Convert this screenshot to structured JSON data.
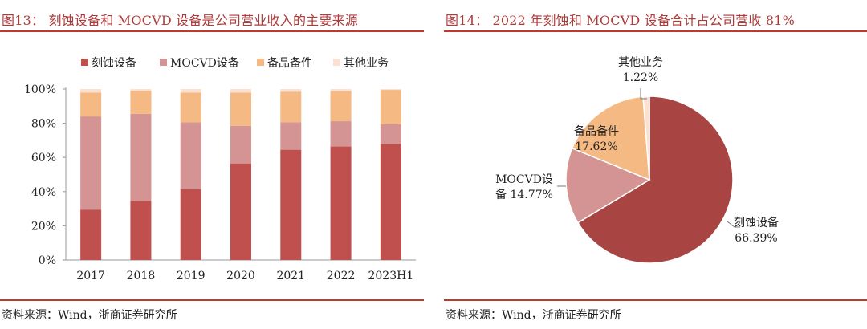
{
  "left": {
    "title": "图13：  刻蚀设备和 MOCVD 设备是公司营业收入的主要来源",
    "source": "资料来源：Wind，浙商证券研究所"
  },
  "right": {
    "title": "图14：  2022 年刻蚀和 MOCVD 设备合计占公司营收 81%",
    "source": "资料来源：Wind，浙商证券研究所"
  },
  "colors": {
    "etch": "#c0504d",
    "mocvd": "#d49494",
    "parts": "#f5b983",
    "other": "#fde0cf",
    "rule": "#c0392b",
    "title": "#b03a3a",
    "pie_etch": "#a84442"
  },
  "chart_data": [
    {
      "type": "bar",
      "stacked": true,
      "title": "刻蚀设备和 MOCVD 设备是公司营业收入的主要来源",
      "categories": [
        "2017",
        "2018",
        "2019",
        "2020",
        "2021",
        "2022",
        "2023H1"
      ],
      "series": [
        {
          "name": "刻蚀设备",
          "color_key": "etch",
          "values": [
            29.5,
            34.5,
            41.5,
            56.5,
            64.5,
            66.4,
            68.0
          ]
        },
        {
          "name": "MOCVD设备",
          "color_key": "mocvd",
          "values": [
            54.5,
            51.0,
            39.0,
            22.0,
            16.0,
            14.8,
            11.5
          ]
        },
        {
          "name": "备品备件",
          "color_key": "parts",
          "values": [
            14.0,
            13.5,
            17.5,
            19.5,
            18.0,
            17.6,
            20.0
          ]
        },
        {
          "name": "其他业务",
          "color_key": "other",
          "values": [
            2.0,
            1.0,
            2.0,
            2.0,
            1.5,
            1.2,
            0.5
          ]
        }
      ],
      "yticks": [
        "0%",
        "20%",
        "40%",
        "60%",
        "80%",
        "100%"
      ],
      "ylim": [
        0,
        100
      ],
      "legend_position": "top",
      "grid": false
    },
    {
      "type": "pie",
      "title": "2022 年刻蚀和 MOCVD 设备合计占公司营收 81%",
      "slices": [
        {
          "name": "刻蚀设备",
          "value": 66.39,
          "label_lines": [
            "刻蚀设备",
            "66.39%"
          ],
          "color_key": "pie_etch"
        },
        {
          "name": "MOCVD设备",
          "value": 14.77,
          "label_lines": [
            "MOCVD设",
            "备 14.77%"
          ],
          "color_key": "mocvd"
        },
        {
          "name": "备品备件",
          "value": 17.62,
          "label_lines": [
            "备品备件",
            "17.62%"
          ],
          "color_key": "parts"
        },
        {
          "name": "其他业务",
          "value": 1.22,
          "label_lines": [
            "其他业务",
            "1.22%"
          ],
          "color_key": "other"
        }
      ]
    }
  ]
}
